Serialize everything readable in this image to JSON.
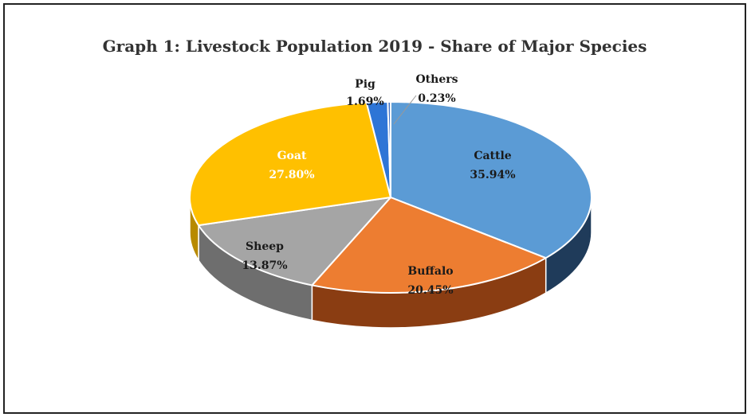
{
  "chart_data": {
    "type": "pie",
    "title": "Graph 1: Livestock Population 2019 - Share of Major Species",
    "slices": [
      {
        "name": "Cattle",
        "value_label": "35.94%",
        "value": 35.94,
        "color": "#5b9bd5",
        "side_color": "#1f3b5a",
        "label_color": "#1a1a1a"
      },
      {
        "name": "Buffalo",
        "value_label": "20.45%",
        "value": 20.45,
        "color": "#ed7d31",
        "side_color": "#8a3d12",
        "label_color": "#1a1a1a"
      },
      {
        "name": "Sheep",
        "value_label": "13.87%",
        "value": 13.87,
        "color": "#a5a5a5",
        "side_color": "#6e6e6e",
        "label_color": "#1a1a1a"
      },
      {
        "name": "Goat",
        "value_label": "27.80%",
        "value": 27.8,
        "color": "#ffc000",
        "side_color": "#b88a00",
        "label_color": "#ffffff"
      },
      {
        "name": "Pig",
        "value_label": "1.69%",
        "value": 1.69,
        "color": "#2e75d6",
        "side_color": "#1c4a8a",
        "label_color": "#1a1a1a"
      },
      {
        "name": "Others",
        "value_label": "0.23%",
        "value": 0.23,
        "color": "#4472c4",
        "side_color": "#2a4a80",
        "label_color": "#1a1a1a"
      }
    ]
  }
}
